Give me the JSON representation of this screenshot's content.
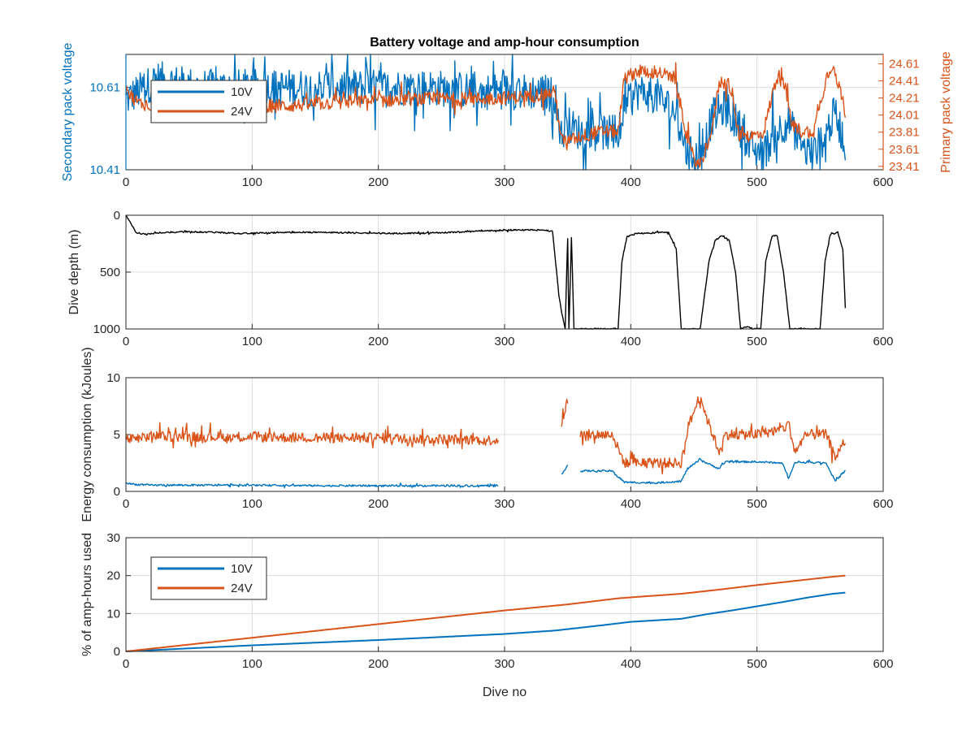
{
  "figure": {
    "title": "Battery voltage and amp-hour consumption",
    "colors": {
      "blue": "#0072BD",
      "orange": "#D95319",
      "black": "#000000"
    }
  },
  "chart_data": [
    {
      "id": "voltage",
      "type": "line",
      "title": "Battery voltage and amp-hour consumption",
      "xlabel": "",
      "ylabel": "Secondary pack voltage",
      "ylabel_right": "Primary pack voltage",
      "xlim": [
        0,
        600
      ],
      "xticks": [
        "0",
        "100",
        "200",
        "300",
        "400",
        "500",
        "600"
      ],
      "ylim": [
        10.41,
        10.69
      ],
      "yticks": [
        "10.41",
        "10.61"
      ],
      "ylim_right": [
        23.37,
        24.72
      ],
      "yticks_right": [
        "23.41",
        "23.61",
        "23.81",
        "24.01",
        "24.21",
        "24.41",
        "24.61"
      ],
      "grid": true,
      "legend": "top-left",
      "series": [
        {
          "name": "10V",
          "axis": "left",
          "color": "#0072BD",
          "x": [
            0,
            10,
            25,
            40,
            60,
            80,
            100,
            130,
            160,
            200,
            240,
            280,
            310,
            330,
            340,
            345,
            350,
            360,
            370,
            380,
            390,
            395,
            405,
            420,
            435,
            445,
            455,
            465,
            475,
            485,
            495,
            505,
            515,
            525,
            535,
            545,
            555,
            562,
            570
          ],
          "y": [
            10.58,
            10.6,
            10.63,
            10.62,
            10.61,
            10.61,
            10.61,
            10.61,
            10.61,
            10.61,
            10.61,
            10.6,
            10.6,
            10.6,
            10.59,
            10.49,
            10.52,
            10.5,
            10.51,
            10.5,
            10.49,
            10.56,
            10.6,
            10.59,
            10.55,
            10.45,
            10.44,
            10.54,
            10.56,
            10.52,
            10.46,
            10.45,
            10.5,
            10.53,
            10.46,
            10.45,
            10.5,
            10.55,
            10.47
          ],
          "noise": 0.045
        },
        {
          "name": "24V",
          "axis": "right",
          "color": "#D95319",
          "x": [
            0,
            10,
            25,
            40,
            60,
            80,
            100,
            130,
            160,
            200,
            240,
            280,
            310,
            330,
            340,
            345,
            350,
            360,
            370,
            380,
            390,
            395,
            405,
            420,
            435,
            445,
            450,
            455,
            465,
            470,
            478,
            485,
            495,
            505,
            515,
            520,
            528,
            535,
            545,
            555,
            560,
            565,
            570
          ],
          "y": [
            24.3,
            24.15,
            24.12,
            24.1,
            24.1,
            24.1,
            24.12,
            24.12,
            24.15,
            24.18,
            24.2,
            24.2,
            24.22,
            24.25,
            24.28,
            23.72,
            23.7,
            23.76,
            23.8,
            23.82,
            23.82,
            24.44,
            24.52,
            24.52,
            24.44,
            23.72,
            23.5,
            23.42,
            23.88,
            24.4,
            24.38,
            23.82,
            23.76,
            23.8,
            24.42,
            24.5,
            23.9,
            23.82,
            23.82,
            24.45,
            24.62,
            24.35,
            24.05
          ],
          "noise": 0.08
        }
      ]
    },
    {
      "id": "depth",
      "type": "line",
      "xlabel": "",
      "ylabel": "Dive depth (m)",
      "xlim": [
        0,
        600
      ],
      "xticks": [
        "0",
        "100",
        "200",
        "300",
        "400",
        "500",
        "600"
      ],
      "ylim": [
        1000,
        0
      ],
      "yticks": [
        "0",
        "500",
        "1000"
      ],
      "grid": true,
      "series": [
        {
          "name": "",
          "color": "#000000",
          "x": [
            0,
            3,
            8,
            15,
            25,
            35,
            50,
            70,
            90,
            110,
            140,
            180,
            220,
            260,
            300,
            330,
            338,
            343,
            346,
            348,
            350,
            351,
            353,
            355,
            360,
            390,
            393,
            397,
            405,
            430,
            436,
            440,
            455,
            462,
            467,
            472,
            478,
            483,
            487,
            492,
            497,
            503,
            507,
            512,
            516,
            521,
            526,
            530,
            550,
            554,
            558,
            564,
            568,
            570
          ],
          "y": [
            0,
            60,
            150,
            170,
            155,
            150,
            145,
            150,
            160,
            155,
            150,
            155,
            160,
            150,
            130,
            130,
            140,
            700,
            900,
            1000,
            200,
            1000,
            200,
            1000,
            1000,
            1000,
            400,
            190,
            160,
            150,
            300,
            1000,
            1000,
            400,
            220,
            180,
            220,
            500,
            1000,
            980,
            1000,
            1000,
            400,
            180,
            180,
            500,
            1000,
            1000,
            1000,
            400,
            170,
            150,
            300,
            820
          ],
          "noise": 6
        }
      ]
    },
    {
      "id": "energy",
      "type": "line",
      "xlabel": "",
      "ylabel": "Energy consumption (kJoules)",
      "xlim": [
        0,
        600
      ],
      "xticks": [
        "0",
        "100",
        "200",
        "300",
        "400",
        "500",
        "600"
      ],
      "ylim": [
        0,
        10
      ],
      "yticks": [
        "0",
        "5",
        "10"
      ],
      "grid": true,
      "series": [
        {
          "name": "24V",
          "color": "#D95319",
          "x": [
            0,
            10,
            20,
            50,
            100,
            150,
            200,
            250,
            295,
            300,
            345,
            350,
            355,
            360,
            385,
            395,
            420,
            440,
            445,
            455,
            460,
            470,
            475,
            500,
            520,
            525,
            530,
            540,
            555,
            562,
            570
          ],
          "y": [
            4.6,
            4.6,
            4.9,
            4.8,
            4.8,
            4.7,
            4.7,
            4.6,
            4.5,
            null,
            6.0,
            8.0,
            null,
            5.0,
            5.0,
            2.5,
            2.5,
            2.5,
            5.5,
            8.5,
            6.5,
            3.5,
            5.0,
            5.0,
            5.5,
            6.0,
            3.5,
            5.0,
            5.0,
            3.0,
            4.5
          ],
          "noise": 0.45
        },
        {
          "name": "10V",
          "color": "#0072BD",
          "x": [
            0,
            10,
            20,
            50,
            100,
            150,
            200,
            250,
            295,
            300,
            345,
            350,
            355,
            360,
            385,
            395,
            420,
            440,
            445,
            455,
            460,
            470,
            475,
            500,
            520,
            525,
            530,
            540,
            555,
            562,
            570
          ],
          "y": [
            0.7,
            0.6,
            0.55,
            0.55,
            0.55,
            0.5,
            0.5,
            0.5,
            0.5,
            null,
            1.5,
            2.3,
            null,
            1.8,
            1.8,
            0.8,
            0.75,
            0.9,
            2.0,
            2.8,
            2.5,
            2.0,
            2.6,
            2.6,
            2.5,
            1.2,
            2.5,
            2.6,
            2.5,
            0.9,
            1.8
          ],
          "noise": 0.08
        }
      ]
    },
    {
      "id": "amphours",
      "type": "line",
      "xlabel": "Dive no",
      "ylabel": "% of amp-hours used",
      "xlim": [
        0,
        600
      ],
      "xticks": [
        "0",
        "100",
        "200",
        "300",
        "400",
        "500",
        "600"
      ],
      "ylim": [
        0,
        30
      ],
      "yticks": [
        "0",
        "10",
        "20",
        "30"
      ],
      "grid": true,
      "legend": "top-left",
      "series": [
        {
          "name": "10V",
          "color": "#0072BD",
          "x": [
            0,
            50,
            100,
            150,
            200,
            250,
            300,
            340,
            380,
            400,
            440,
            460,
            480,
            500,
            520,
            540,
            560,
            570
          ],
          "y": [
            0,
            0.8,
            1.6,
            2.3,
            3.0,
            3.8,
            4.6,
            5.5,
            7.0,
            7.8,
            8.6,
            9.8,
            10.8,
            11.9,
            13.0,
            14.2,
            15.2,
            15.5
          ],
          "noise": 0
        },
        {
          "name": "24V",
          "color": "#D95319",
          "x": [
            0,
            50,
            100,
            150,
            200,
            250,
            300,
            350,
            390,
            410,
            440,
            470,
            500,
            530,
            560,
            570
          ],
          "y": [
            0,
            1.8,
            3.6,
            5.4,
            7.2,
            9.0,
            10.8,
            12.4,
            14.0,
            14.5,
            15.2,
            16.3,
            17.5,
            18.6,
            19.7,
            20.0
          ],
          "noise": 0
        }
      ]
    }
  ]
}
